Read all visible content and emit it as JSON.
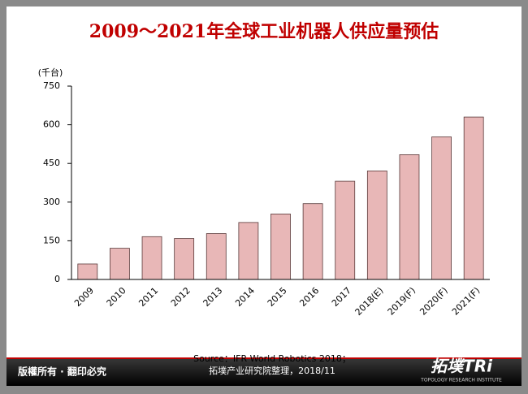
{
  "chart_data": {
    "type": "bar",
    "title": "2009～2021年全球工业机器人供应量预估",
    "y_label": "(千台)",
    "categories": [
      "2009",
      "2010",
      "2011",
      "2012",
      "2013",
      "2014",
      "2015",
      "2016",
      "2017",
      "2018(E)",
      "2019(F)",
      "2020(F)",
      "2021(F)"
    ],
    "values": [
      60,
      121,
      166,
      159,
      178,
      221,
      254,
      294,
      381,
      421,
      484,
      553,
      630
    ],
    "color": "#e8b7b7",
    "ylim": [
      0,
      750
    ],
    "yticks": [
      0,
      150,
      300,
      450,
      600,
      750
    ]
  },
  "footer": {
    "copyright": "版權所有 · 翻印必究",
    "source": [
      "Source：IFR World Robotics 2018；",
      "拓墣产业研究院整理，2018/11"
    ],
    "logo": "拓墣TRi",
    "logo_sub": "TOPOLOGY RESEARCH INSTITUTE"
  }
}
